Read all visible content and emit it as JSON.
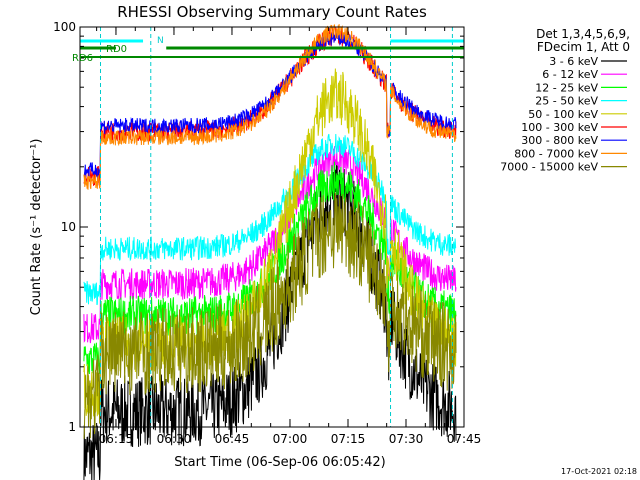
{
  "chart_data": {
    "type": "line",
    "title": "RHESSI Observing Summary Count Rates",
    "xlabel": "Start Time (06-Sep-06 06:05:42)",
    "ylabel": "Count Rate (s⁻¹ detector⁻¹)",
    "yscale": "log",
    "ylim": [
      1,
      100
    ],
    "xlim": [
      "06:05:42",
      "07:45:00"
    ],
    "x_ticks": [
      "06:15",
      "06:30",
      "06:45",
      "07:00",
      "07:15",
      "07:30",
      "07:45"
    ],
    "y_ticks": [
      "1",
      "10",
      "100"
    ],
    "legend_title": [
      "Det 1,3,4,5,6,9,",
      "FDecim 1, Att 0"
    ],
    "legend_placement": "right",
    "timestamp": "17-Oct-2021 02:18",
    "annotations": {
      "rd0": "RD0",
      "rd6": "RD6",
      "n": "N"
    },
    "flare_peak_time": "07:12",
    "series": [
      {
        "name": "3 - 6 keV",
        "color": "#000000"
      },
      {
        "name": "6 - 12 keV",
        "color": "#ff00ff"
      },
      {
        "name": "12 - 25 keV",
        "color": "#00ff00"
      },
      {
        "name": "25 - 50 keV",
        "color": "#00ffff"
      },
      {
        "name": "50 - 100 keV",
        "color": "#cccc00"
      },
      {
        "name": "100 - 300 keV",
        "color": "#ff0000"
      },
      {
        "name": "300 - 800 keV",
        "color": "#0000ff"
      },
      {
        "name": "800 - 7000 keV",
        "color": "#ff8800"
      },
      {
        "name": "7000 - 15000 keV",
        "color": "#888800"
      }
    ]
  }
}
